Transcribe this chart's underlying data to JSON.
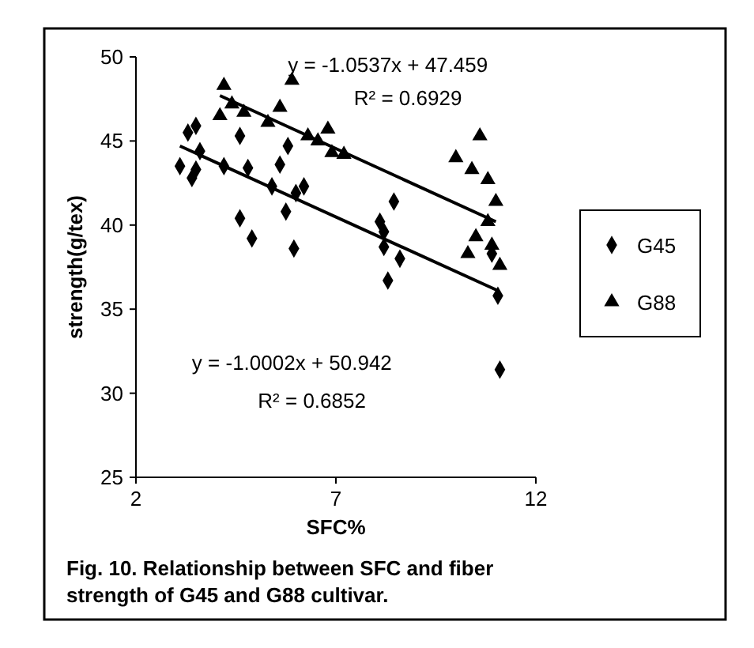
{
  "chart_data": {
    "type": "scatter",
    "xlabel": "SFC%",
    "ylabel": "strength(g/tex)",
    "xlim": [
      2,
      12
    ],
    "xticks": [
      2,
      7,
      12
    ],
    "ylim": [
      25,
      50
    ],
    "yticks": [
      25,
      30,
      35,
      40,
      45,
      50
    ],
    "legend": "right",
    "grid": false,
    "series": [
      {
        "name": "G45",
        "color": "#000000",
        "marker": "diamond",
        "x": [
          3.1,
          3.3,
          3.5,
          3.4,
          3.5,
          3.6,
          4.2,
          4.6,
          4.6,
          4.8,
          4.9,
          5.4,
          5.6,
          5.8,
          5.75,
          6.0,
          5.95,
          6.2,
          8.45,
          8.1,
          8.2,
          8.2,
          8.3,
          8.6,
          10.9,
          11.05,
          11.1
        ],
        "values": [
          43.5,
          45.5,
          45.9,
          42.8,
          43.3,
          44.4,
          43.5,
          45.3,
          40.4,
          43.4,
          39.2,
          42.3,
          43.6,
          44.7,
          40.8,
          41.9,
          38.6,
          42.3,
          41.4,
          40.2,
          39.6,
          38.7,
          36.7,
          38.0,
          38.3,
          35.8,
          31.4
        ]
      },
      {
        "name": "G88",
        "color": "#000000",
        "marker": "triangle",
        "x": [
          4.2,
          4.1,
          4.4,
          4.7,
          5.3,
          5.6,
          5.9,
          6.3,
          6.55,
          6.8,
          6.9,
          7.2,
          10.0,
          10.6,
          10.4,
          10.8,
          11.0,
          10.8,
          10.5,
          10.3,
          10.9,
          11.1
        ],
        "values": [
          48.3,
          46.5,
          47.2,
          46.7,
          46.1,
          47.0,
          48.6,
          45.3,
          45.0,
          45.7,
          44.3,
          44.2,
          44.0,
          45.3,
          43.3,
          42.7,
          41.4,
          40.2,
          39.3,
          38.3,
          38.8,
          37.6
        ]
      },
      {
        "type": "line",
        "color": "#000000",
        "marker": "none",
        "x": [
          3.1,
          11.05
        ],
        "values": [
          44.7,
          36.1
        ]
      },
      {
        "type": "line",
        "color": "#000000",
        "marker": "none",
        "x": [
          4.1,
          11.0
        ],
        "values": [
          47.7,
          40.2
        ]
      }
    ],
    "annotations": [
      "y = -1.0537x + 47.459",
      "R² = 0.6929",
      "y = -1.0002x + 50.942",
      "R² = 0.6852",
      "Fig. 10.  Relationship between SFC and fiber strength of G45 and G88 cultivar."
    ]
  }
}
